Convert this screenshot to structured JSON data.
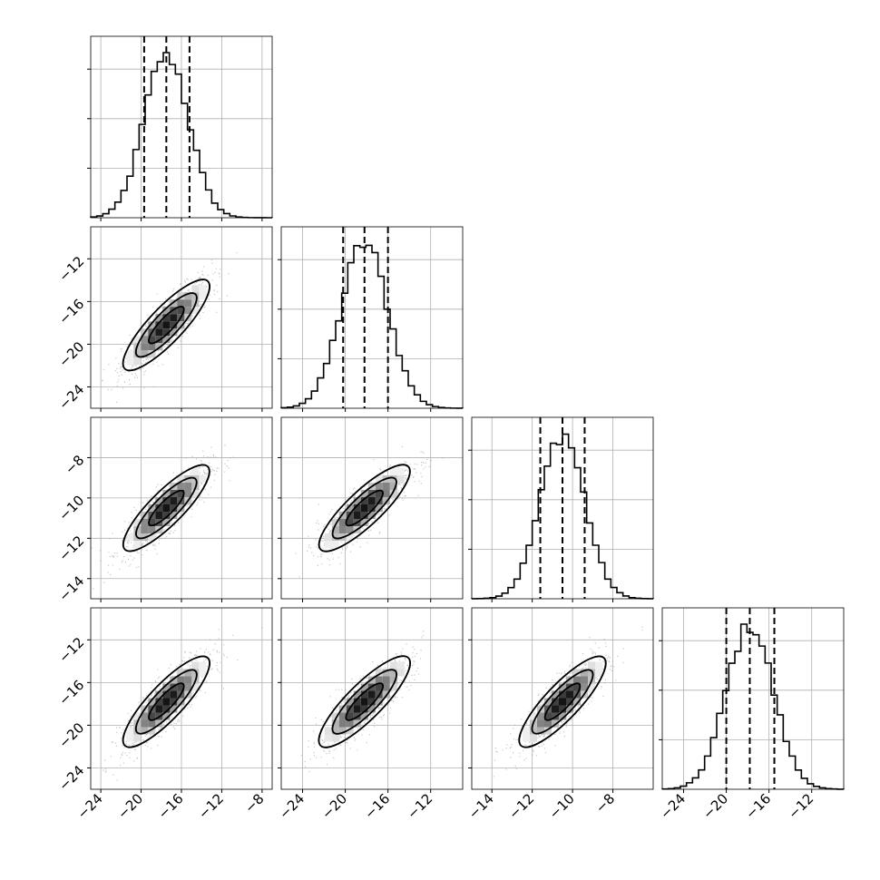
{
  "chart_data": {
    "type": "corner",
    "grid": true,
    "colors": {
      "line": "#000000",
      "grid": "#b0b0b0",
      "scatter": "#9a9a9a",
      "frame": "#000000"
    },
    "variables": [
      {
        "index": 0,
        "range": [
          -25,
          -7
        ],
        "ticks": [
          "−24",
          "−20",
          "−16",
          "−12",
          "−8"
        ],
        "tick_values": [
          -24,
          -20,
          -16,
          -12,
          -8
        ],
        "mean": -17.5,
        "sd": 2.2,
        "quantiles": [
          -19.7,
          -17.5,
          -15.2
        ]
      },
      {
        "index": 1,
        "range": [
          -26,
          -9
        ],
        "ticks": [
          "−24",
          "−20",
          "−16",
          "−12"
        ],
        "tick_values": [
          -24,
          -20,
          -16,
          -12
        ],
        "mean": -18.2,
        "sd": 2.2,
        "quantiles": [
          -20.2,
          -18.2,
          -16.0
        ]
      },
      {
        "index": 2,
        "range": [
          -15,
          -6
        ],
        "ticks": [
          "−14",
          "−12",
          "−10",
          "−8"
        ],
        "tick_values": [
          -14,
          -12,
          -10,
          -8
        ],
        "mean": -10.5,
        "sd": 1.1,
        "quantiles": [
          -11.6,
          -10.5,
          -9.4
        ]
      },
      {
        "index": 3,
        "range": [
          -26,
          -9
        ],
        "ticks": [
          "−24",
          "−20",
          "−16",
          "−12"
        ],
        "tick_values": [
          -24,
          -20,
          -16,
          -12
        ],
        "mean": -17.8,
        "sd": 2.2,
        "quantiles": [
          -20.0,
          -17.8,
          -15.5
        ]
      }
    ],
    "panels": [
      {
        "row": 1,
        "col": 0,
        "type": "2d-histogram-contour",
        "correlation": 0.85
      },
      {
        "row": 2,
        "col": 0,
        "type": "2d-histogram-contour",
        "correlation": 0.85
      },
      {
        "row": 2,
        "col": 1,
        "type": "2d-histogram-contour",
        "correlation": 0.85
      },
      {
        "row": 3,
        "col": 0,
        "type": "2d-histogram-contour",
        "correlation": 0.85
      },
      {
        "row": 3,
        "col": 1,
        "type": "2d-histogram-contour",
        "correlation": 0.85
      },
      {
        "row": 3,
        "col": 2,
        "type": "2d-histogram-contour",
        "correlation": 0.85
      }
    ],
    "histogram_bins": 30
  }
}
